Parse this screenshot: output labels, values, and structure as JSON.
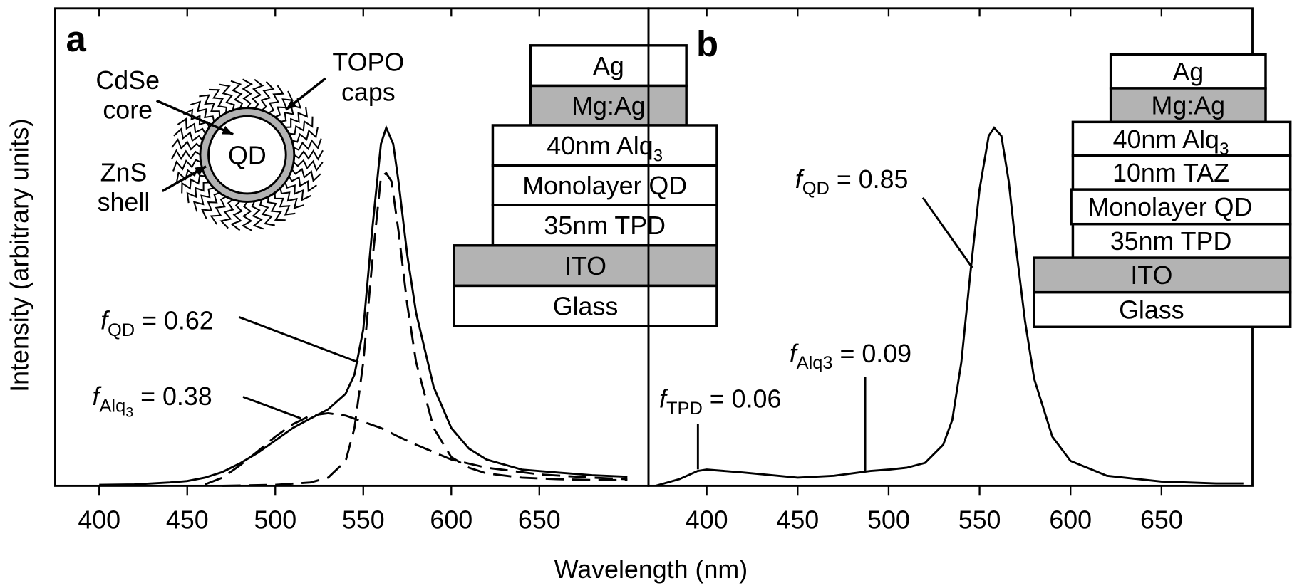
{
  "figure": {
    "ylabel": "Intensity (arbitrary units)",
    "xlabel": "Wavelength (nm)"
  },
  "chart_data": [
    {
      "type": "line",
      "panel_label": "a",
      "xlim": [
        375,
        712
      ],
      "xticks": [
        400,
        450,
        500,
        550,
        600,
        650
      ],
      "ylim": [
        0,
        1
      ],
      "yticks": [],
      "series": [
        {
          "color": "#000000",
          "dashed": false,
          "x": [
            400,
            420,
            440,
            450,
            460,
            470,
            480,
            490,
            500,
            510,
            520,
            530,
            540,
            545,
            550,
            555,
            560,
            563,
            567,
            570,
            575,
            580,
            590,
            600,
            610,
            620,
            640,
            660,
            680,
            700
          ],
          "values": [
            0.002,
            0.003,
            0.007,
            0.01,
            0.017,
            0.029,
            0.047,
            0.069,
            0.095,
            0.121,
            0.141,
            0.16,
            0.193,
            0.233,
            0.328,
            0.534,
            0.716,
            0.75,
            0.716,
            0.638,
            0.483,
            0.362,
            0.207,
            0.121,
            0.078,
            0.055,
            0.034,
            0.028,
            0.022,
            0.019
          ]
        },
        {
          "color": "#000000",
          "dashed": true,
          "x": [
            460,
            470,
            480,
            490,
            500,
            510,
            520,
            530,
            540,
            550,
            560,
            570,
            580,
            600,
            620,
            650,
            680,
            700
          ],
          "values": [
            0.003,
            0.017,
            0.043,
            0.072,
            0.103,
            0.129,
            0.147,
            0.152,
            0.147,
            0.134,
            0.121,
            0.103,
            0.086,
            0.055,
            0.038,
            0.024,
            0.017,
            0.014
          ]
        },
        {
          "color": "#000000",
          "dashed": true,
          "x": [
            470,
            500,
            520,
            530,
            540,
            545,
            550,
            555,
            560,
            563,
            566,
            570,
            575,
            580,
            590,
            600,
            610,
            620,
            640,
            660,
            680,
            700
          ],
          "values": [
            0,
            0.002,
            0.007,
            0.017,
            0.052,
            0.121,
            0.259,
            0.466,
            0.647,
            0.655,
            0.638,
            0.534,
            0.379,
            0.259,
            0.121,
            0.06,
            0.038,
            0.026,
            0.017,
            0.014,
            0.012,
            0.012
          ]
        }
      ],
      "annotations": [
        {
          "symbol": "f",
          "subscript": "QD",
          "text": " = 0.62"
        },
        {
          "symbol": "f",
          "subscript": "Alq",
          "subsubscript": "3",
          "text": " = 0.38"
        }
      ],
      "inset": {
        "center": "QD",
        "labels": [
          [
            "CdSe",
            "core"
          ],
          [
            "TOPO",
            "caps"
          ],
          [
            "ZnS",
            "shell"
          ]
        ]
      },
      "device_stack": [
        {
          "text": "Ag",
          "shaded": false
        },
        {
          "text": "Mg:Ag",
          "shaded": true
        },
        {
          "text": "40nm Alq",
          "sub": "3",
          "shaded": false
        },
        {
          "text": "Monolayer QD",
          "shaded": false
        },
        {
          "text": "35nm TPD",
          "shaded": false
        },
        {
          "text": "ITO",
          "shaded": true
        },
        {
          "text": "Glass",
          "shaded": false
        }
      ]
    },
    {
      "type": "line",
      "panel_label": "b",
      "xlim": [
        368,
        700
      ],
      "xticks": [
        400,
        450,
        500,
        550,
        600,
        650
      ],
      "ylim": [
        0,
        1
      ],
      "yticks": [],
      "series": [
        {
          "color": "#000000",
          "dashed": false,
          "x": [
            372,
            385,
            395,
            400,
            420,
            450,
            470,
            480,
            490,
            500,
            510,
            520,
            530,
            535,
            540,
            545,
            550,
            555,
            558,
            562,
            566,
            570,
            575,
            580,
            590,
            600,
            620,
            650,
            680,
            695
          ],
          "values": [
            0,
            0.014,
            0.031,
            0.034,
            0.028,
            0.017,
            0.021,
            0.026,
            0.031,
            0.034,
            0.038,
            0.048,
            0.086,
            0.138,
            0.259,
            0.448,
            0.621,
            0.733,
            0.75,
            0.733,
            0.638,
            0.5,
            0.345,
            0.224,
            0.103,
            0.052,
            0.021,
            0.009,
            0.005,
            0.005
          ]
        }
      ],
      "annotations": [
        {
          "symbol": "f",
          "subscript": "QD",
          "text": " = 0.85"
        },
        {
          "symbol": "f",
          "subscript": "Alq3",
          "text": " = 0.09"
        },
        {
          "symbol": "f",
          "subscript": "TPD",
          "text": " = 0.06"
        }
      ],
      "device_stack": [
        {
          "text": "Ag",
          "shaded": false
        },
        {
          "text": "Mg:Ag",
          "shaded": true
        },
        {
          "text": "40nm Alq",
          "sub": "3",
          "shaded": false
        },
        {
          "text": "10nm TAZ",
          "shaded": false
        },
        {
          "text": "Monolayer QD",
          "shaded": false
        },
        {
          "text": "35nm TPD",
          "shaded": false
        },
        {
          "text": "ITO",
          "shaded": true
        },
        {
          "text": "Glass",
          "shaded": false
        }
      ]
    }
  ]
}
